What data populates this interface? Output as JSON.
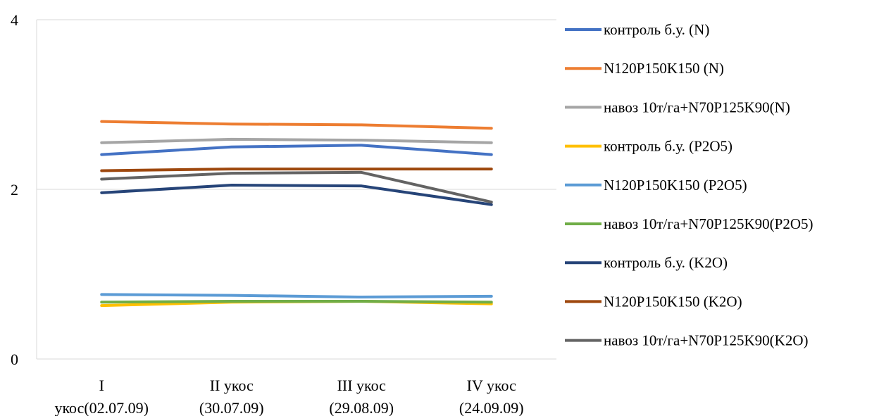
{
  "chart_data": {
    "type": "line",
    "categories": [
      [
        "I",
        "укос(02.07.09)"
      ],
      [
        "II укос",
        "(30.07.09)"
      ],
      [
        "III укос",
        "(29.08.09)"
      ],
      [
        "IV укос",
        "(24.09.09)"
      ]
    ],
    "ylim": [
      0,
      4
    ],
    "yticks": [
      "0",
      "2",
      "4"
    ],
    "grid": true,
    "legend_position": "right",
    "series": [
      {
        "name": "контроль б.у. (N)",
        "color": "#4472C4",
        "values": [
          2.41,
          2.5,
          2.52,
          2.41
        ]
      },
      {
        "name": "N120P150K150 (N)",
        "color": "#ED7D31",
        "values": [
          2.8,
          2.77,
          2.76,
          2.72
        ]
      },
      {
        "name": "навоз 10т/га+N70P125K90(N)",
        "color": "#A5A5A5",
        "values": [
          2.55,
          2.59,
          2.58,
          2.55
        ]
      },
      {
        "name": "контроль б.у. (P2O5)",
        "color": "#FFC000",
        "values": [
          0.63,
          0.67,
          0.68,
          0.65
        ]
      },
      {
        "name": "N120P150K150 (P2O5)",
        "color": "#5B9BD5",
        "values": [
          0.76,
          0.75,
          0.73,
          0.74
        ]
      },
      {
        "name": "навоз 10т/га+N70P125K90(P2O5)",
        "color": "#70AD47",
        "values": [
          0.67,
          0.68,
          0.68,
          0.67
        ]
      },
      {
        "name": "контроль б.у. (K2O)",
        "color": "#264478",
        "values": [
          1.96,
          2.05,
          2.04,
          1.82
        ]
      },
      {
        "name": "N120P150K150 (K2O)",
        "color": "#9E480E",
        "values": [
          2.22,
          2.24,
          2.24,
          2.24
        ]
      },
      {
        "name": "навоз 10т/га+N70P125K90(K2O)",
        "color": "#636363",
        "values": [
          2.12,
          2.19,
          2.2,
          1.85
        ]
      }
    ]
  }
}
